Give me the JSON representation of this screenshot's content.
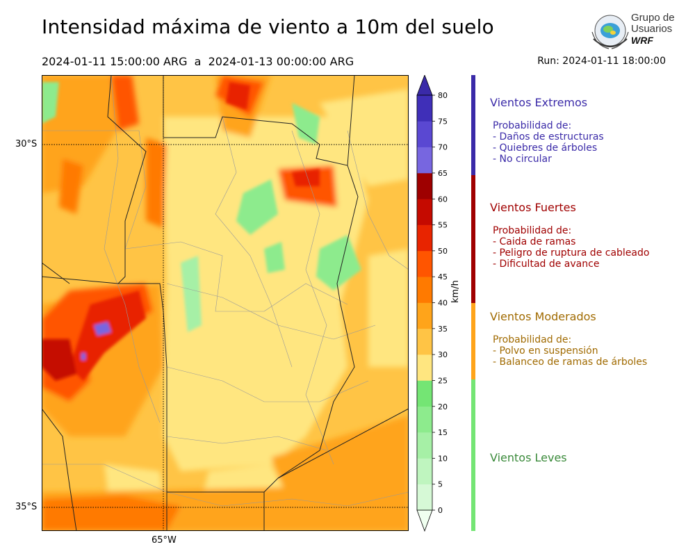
{
  "title": "Intensidad máxima de viento a 10m del suelo",
  "period": "2024-01-11 15:00:00 ARG  a  2024-01-13 00:00:00 ARG",
  "run": "Run: 2024-01-11 18:00:00",
  "logo": {
    "line1": "Grupo de",
    "line2": "Usuarios",
    "line3": "WRF"
  },
  "map": {
    "lat_labels": [
      "30°S",
      "35°S"
    ],
    "lon_labels": [
      "65°W"
    ]
  },
  "colorbar": {
    "unit": "km/h",
    "ticks": [
      "0",
      "5",
      "10",
      "15",
      "20",
      "25",
      "30",
      "35",
      "40",
      "45",
      "50",
      "55",
      "60",
      "65",
      "70",
      "75",
      "80"
    ],
    "colors": [
      "#f0fff0",
      "#d6f9d6",
      "#bff5bf",
      "#a6f0a6",
      "#8deb8d",
      "#74e574",
      "#ffe680",
      "#ffc445",
      "#ffa41a",
      "#ff7a00",
      "#ff5500",
      "#e82400",
      "#c50a00",
      "#9e0000",
      "#7766e0",
      "#5a48d2",
      "#3f2fb8"
    ],
    "extend_top": "#3a2aa8"
  },
  "categories": [
    {
      "name": "Vientos Extremos",
      "color": "#3a2aa8",
      "lines": [
        "Probabilidad de:",
        "- Daños de estructuras",
        "- Quiebres de árboles",
        "- No circular"
      ]
    },
    {
      "name": "Vientos Fuertes",
      "color": "#a00000",
      "lines": [
        "Probabilidad de:",
        "- Caida de ramas",
        "- Peligro de ruptura de cableado",
        "- Dificultad de avance"
      ]
    },
    {
      "name": "Vientos Moderados",
      "color": "#b07800",
      "lines": [
        "Probabilidad de:",
        "- Polvo en suspensión",
        "- Balanceo de ramas de árboles"
      ]
    },
    {
      "name": "Vientos Leves",
      "color": "#3a8a3a",
      "lines": []
    }
  ]
}
